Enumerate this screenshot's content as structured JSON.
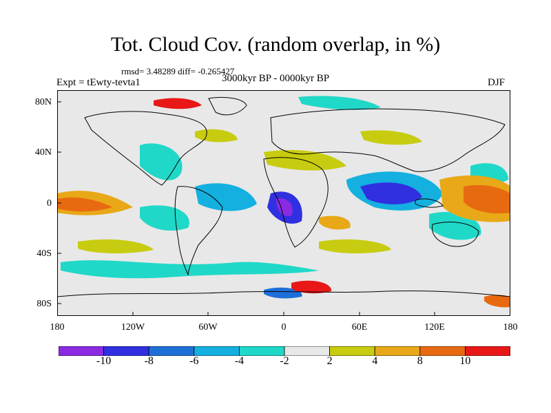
{
  "title": "Tot. Cloud Cov. (random overlap, in %)",
  "stats": "rmsd= 3.48289  diff= -0.265427",
  "experiment": "Expt = tEwty-tevta1",
  "period": "3000kyr BP - 0000kyr BP",
  "season": "DJF",
  "axes": {
    "y_ticks": [
      "80N",
      "40N",
      "0",
      "40S",
      "80S"
    ],
    "x_ticks": [
      "180",
      "120W",
      "60W",
      "0",
      "60E",
      "120E",
      "180"
    ]
  },
  "colorbar": {
    "labels": [
      "-10",
      "-8",
      "-6",
      "-4",
      "-2",
      "2",
      "4",
      "8",
      "10"
    ],
    "colors": [
      "#8a2be2",
      "#3030e0",
      "#1f6fd8",
      "#14b0e0",
      "#20d8c8",
      "#e8e8e8",
      "#c8cc10",
      "#e8a818",
      "#e86a10",
      "#e81818"
    ]
  },
  "colors": {
    "background": "#e8e8e8",
    "coastline": "#000000"
  }
}
